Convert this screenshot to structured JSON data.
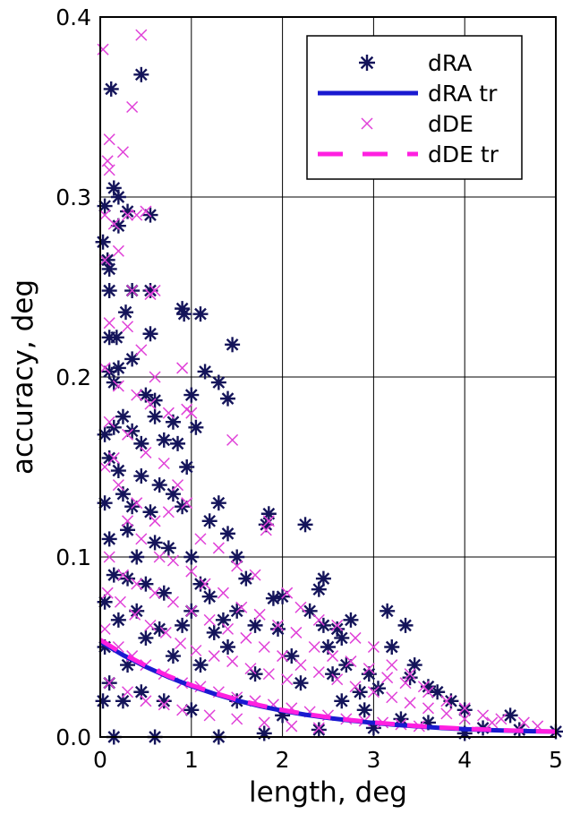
{
  "chart_data": {
    "type": "scatter",
    "title": "",
    "xlabel": "length, deg",
    "ylabel": "accuracy, deg",
    "xlim": [
      0,
      5
    ],
    "ylim": [
      0,
      0.4
    ],
    "x_ticks": [
      "0",
      "1",
      "2",
      "3",
      "4",
      "5"
    ],
    "y_ticks": [
      "0.0",
      "0.1",
      "0.2",
      "0.3",
      "0.4"
    ],
    "grid": true,
    "legend_position": "top-right",
    "series": [
      {
        "name": "dRA",
        "marker": "asterisk",
        "color": "#14145a",
        "points": [
          [
            0.03,
            0.275
          ],
          [
            0.05,
            0.295
          ],
          [
            0.08,
            0.265
          ],
          [
            0.1,
            0.26
          ],
          [
            0.1,
            0.248
          ],
          [
            0.12,
            0.36
          ],
          [
            0.15,
            0.305
          ],
          [
            0.2,
            0.3
          ],
          [
            0.2,
            0.284
          ],
          [
            0.3,
            0.292
          ],
          [
            0.45,
            0.368
          ],
          [
            0.55,
            0.29
          ],
          [
            0.1,
            0.222
          ],
          [
            0.18,
            0.222
          ],
          [
            0.28,
            0.236
          ],
          [
            0.35,
            0.248
          ],
          [
            0.55,
            0.248
          ],
          [
            0.55,
            0.224
          ],
          [
            0.1,
            0.203
          ],
          [
            0.15,
            0.197
          ],
          [
            0.2,
            0.205
          ],
          [
            0.35,
            0.21
          ],
          [
            0.5,
            0.19
          ],
          [
            0.6,
            0.187
          ],
          [
            0.6,
            0.178
          ],
          [
            0.9,
            0.238
          ],
          [
            0.92,
            0.235
          ],
          [
            1.1,
            0.235
          ],
          [
            1.15,
            0.203
          ],
          [
            1.3,
            0.197
          ],
          [
            1.4,
            0.188
          ],
          [
            1.45,
            0.218
          ],
          [
            1.0,
            0.19
          ],
          [
            0.8,
            0.175
          ],
          [
            1.05,
            0.172
          ],
          [
            0.05,
            0.168
          ],
          [
            0.15,
            0.172
          ],
          [
            0.25,
            0.178
          ],
          [
            0.35,
            0.17
          ],
          [
            0.45,
            0.163
          ],
          [
            0.7,
            0.165
          ],
          [
            0.85,
            0.163
          ],
          [
            0.1,
            0.155
          ],
          [
            0.2,
            0.148
          ],
          [
            0.45,
            0.145
          ],
          [
            0.65,
            0.14
          ],
          [
            0.95,
            0.15
          ],
          [
            0.05,
            0.13
          ],
          [
            0.25,
            0.135
          ],
          [
            0.35,
            0.128
          ],
          [
            0.55,
            0.125
          ],
          [
            0.8,
            0.135
          ],
          [
            0.9,
            0.128
          ],
          [
            1.2,
            0.12
          ],
          [
            1.3,
            0.13
          ],
          [
            1.4,
            0.113
          ],
          [
            1.85,
            0.124
          ],
          [
            1.82,
            0.118
          ],
          [
            2.25,
            0.118
          ],
          [
            0.1,
            0.11
          ],
          [
            0.3,
            0.115
          ],
          [
            0.4,
            0.1
          ],
          [
            0.6,
            0.108
          ],
          [
            0.75,
            0.105
          ],
          [
            1.0,
            0.1
          ],
          [
            1.1,
            0.085
          ],
          [
            1.5,
            0.1
          ],
          [
            1.6,
            0.088
          ],
          [
            1.9,
            0.077
          ],
          [
            2.0,
            0.078
          ],
          [
            2.45,
            0.088
          ],
          [
            2.4,
            0.082
          ],
          [
            1.2,
            0.078
          ],
          [
            1.35,
            0.065
          ],
          [
            1.5,
            0.07
          ],
          [
            1.7,
            0.062
          ],
          [
            1.95,
            0.06
          ],
          [
            2.3,
            0.07
          ],
          [
            2.45,
            0.062
          ],
          [
            2.6,
            0.06
          ],
          [
            2.75,
            0.065
          ],
          [
            1.0,
            0.07
          ],
          [
            0.7,
            0.08
          ],
          [
            0.5,
            0.085
          ],
          [
            0.3,
            0.088
          ],
          [
            0.15,
            0.09
          ],
          [
            3.15,
            0.07
          ],
          [
            3.35,
            0.062
          ],
          [
            3.2,
            0.05
          ],
          [
            2.1,
            0.045
          ],
          [
            2.5,
            0.05
          ],
          [
            2.65,
            0.055
          ],
          [
            2.7,
            0.04
          ],
          [
            2.55,
            0.035
          ],
          [
            2.95,
            0.035
          ],
          [
            3.45,
            0.04
          ],
          [
            3.4,
            0.033
          ],
          [
            3.6,
            0.028
          ],
          [
            3.7,
            0.025
          ],
          [
            3.85,
            0.02
          ],
          [
            4.0,
            0.015
          ],
          [
            4.5,
            0.012
          ],
          [
            3.05,
            0.027
          ],
          [
            2.85,
            0.025
          ],
          [
            2.65,
            0.02
          ],
          [
            0.15,
            0.0
          ],
          [
            0.6,
            0.0
          ],
          [
            1.3,
            0.0
          ],
          [
            1.8,
            0.002
          ],
          [
            2.4,
            0.004
          ],
          [
            3.0,
            0.005
          ],
          [
            4.0,
            0.002
          ],
          [
            5.0,
            0.003
          ],
          [
            0.05,
            0.05
          ],
          [
            0.3,
            0.04
          ],
          [
            0.5,
            0.055
          ],
          [
            0.8,
            0.045
          ],
          [
            1.1,
            0.04
          ],
          [
            1.4,
            0.05
          ],
          [
            1.7,
            0.035
          ],
          [
            2.2,
            0.03
          ],
          [
            2.9,
            0.015
          ],
          [
            3.3,
            0.01
          ],
          [
            3.6,
            0.008
          ],
          [
            4.2,
            0.005
          ],
          [
            4.6,
            0.004
          ],
          [
            0.05,
            0.075
          ],
          [
            0.2,
            0.065
          ],
          [
            0.4,
            0.07
          ],
          [
            0.65,
            0.06
          ],
          [
            0.9,
            0.062
          ],
          [
            1.25,
            0.058
          ],
          [
            0.03,
            0.02
          ],
          [
            0.1,
            0.03
          ],
          [
            0.25,
            0.02
          ],
          [
            0.45,
            0.025
          ],
          [
            0.7,
            0.02
          ],
          [
            1.0,
            0.015
          ],
          [
            1.5,
            0.02
          ],
          [
            2.0,
            0.012
          ]
        ]
      },
      {
        "name": "dRA tr",
        "line": "solid",
        "color": "#1a1ad0",
        "x": [
          0,
          0.25,
          0.5,
          0.75,
          1.0,
          1.25,
          1.5,
          1.75,
          2.0,
          2.25,
          2.5,
          2.75,
          3.0,
          3.25,
          3.5,
          3.75,
          4.0,
          4.25,
          4.5,
          4.75,
          5.0
        ],
        "values": [
          0.053,
          0.0455,
          0.039,
          0.0333,
          0.0283,
          0.024,
          0.0203,
          0.0172,
          0.0146,
          0.0124,
          0.0106,
          0.0091,
          0.0078,
          0.0067,
          0.0058,
          0.005,
          0.0044,
          0.0039,
          0.0035,
          0.0032,
          0.003
        ]
      },
      {
        "name": "dDE",
        "marker": "cross",
        "color": "#e040d8",
        "points": [
          [
            0.03,
            0.382
          ],
          [
            0.08,
            0.32
          ],
          [
            0.1,
            0.315
          ],
          [
            0.1,
            0.332
          ],
          [
            0.25,
            0.325
          ],
          [
            0.35,
            0.35
          ],
          [
            0.45,
            0.39
          ],
          [
            0.05,
            0.29
          ],
          [
            0.15,
            0.285
          ],
          [
            0.3,
            0.29
          ],
          [
            0.4,
            0.29
          ],
          [
            0.5,
            0.292
          ],
          [
            0.05,
            0.265
          ],
          [
            0.2,
            0.27
          ],
          [
            0.35,
            0.248
          ],
          [
            0.55,
            0.246
          ],
          [
            0.6,
            0.248
          ],
          [
            0.1,
            0.23
          ],
          [
            0.3,
            0.228
          ],
          [
            0.45,
            0.215
          ],
          [
            0.6,
            0.2
          ],
          [
            0.9,
            0.205
          ],
          [
            0.05,
            0.205
          ],
          [
            0.2,
            0.195
          ],
          [
            0.4,
            0.19
          ],
          [
            0.55,
            0.185
          ],
          [
            0.75,
            0.18
          ],
          [
            0.95,
            0.182
          ],
          [
            1.0,
            0.18
          ],
          [
            1.45,
            0.165
          ],
          [
            0.1,
            0.175
          ],
          [
            0.3,
            0.168
          ],
          [
            0.5,
            0.158
          ],
          [
            0.7,
            0.152
          ],
          [
            0.85,
            0.14
          ],
          [
            0.2,
            0.14
          ],
          [
            0.4,
            0.13
          ],
          [
            0.6,
            0.12
          ],
          [
            0.75,
            0.125
          ],
          [
            0.95,
            0.13
          ],
          [
            1.1,
            0.11
          ],
          [
            1.3,
            0.105
          ],
          [
            1.5,
            0.095
          ],
          [
            1.7,
            0.09
          ],
          [
            1.82,
            0.115
          ],
          [
            1.85,
            0.12
          ],
          [
            2.05,
            0.08
          ],
          [
            2.2,
            0.072
          ],
          [
            2.4,
            0.065
          ],
          [
            2.6,
            0.062
          ],
          [
            2.8,
            0.055
          ],
          [
            3.0,
            0.05
          ],
          [
            3.2,
            0.04
          ],
          [
            3.4,
            0.035
          ],
          [
            3.6,
            0.025
          ],
          [
            3.8,
            0.02
          ],
          [
            4.0,
            0.016
          ],
          [
            4.2,
            0.012
          ],
          [
            4.4,
            0.01
          ],
          [
            4.65,
            0.008
          ],
          [
            0.1,
            0.1
          ],
          [
            0.25,
            0.09
          ],
          [
            0.4,
            0.085
          ],
          [
            0.6,
            0.08
          ],
          [
            0.8,
            0.075
          ],
          [
            1.0,
            0.07
          ],
          [
            1.2,
            0.065
          ],
          [
            1.4,
            0.06
          ],
          [
            1.6,
            0.055
          ],
          [
            1.8,
            0.05
          ],
          [
            2.0,
            0.045
          ],
          [
            2.2,
            0.04
          ],
          [
            2.4,
            0.036
          ],
          [
            2.6,
            0.032
          ],
          [
            2.8,
            0.028
          ],
          [
            3.0,
            0.025
          ],
          [
            3.2,
            0.022
          ],
          [
            3.4,
            0.019
          ],
          [
            3.6,
            0.016
          ],
          [
            3.8,
            0.013
          ],
          [
            4.0,
            0.01
          ],
          [
            4.3,
            0.008
          ],
          [
            4.8,
            0.006
          ],
          [
            0.05,
            0.06
          ],
          [
            0.2,
            0.05
          ],
          [
            0.35,
            0.045
          ],
          [
            0.5,
            0.04
          ],
          [
            0.7,
            0.035
          ],
          [
            0.9,
            0.03
          ],
          [
            1.1,
            0.028
          ],
          [
            1.3,
            0.025
          ],
          [
            1.5,
            0.022
          ],
          [
            1.7,
            0.02
          ],
          [
            1.9,
            0.018
          ],
          [
            2.1,
            0.016
          ],
          [
            2.3,
            0.014
          ],
          [
            2.5,
            0.012
          ],
          [
            2.7,
            0.01
          ],
          [
            2.9,
            0.009
          ],
          [
            3.1,
            0.008
          ],
          [
            3.3,
            0.007
          ],
          [
            3.5,
            0.006
          ],
          [
            0.1,
            0.03
          ],
          [
            0.3,
            0.025
          ],
          [
            0.5,
            0.02
          ],
          [
            0.7,
            0.018
          ],
          [
            0.9,
            0.015
          ],
          [
            1.2,
            0.012
          ],
          [
            1.5,
            0.01
          ],
          [
            1.8,
            0.008
          ],
          [
            2.1,
            0.006
          ],
          [
            2.4,
            0.005
          ],
          [
            0.05,
            0.15
          ],
          [
            0.15,
            0.155
          ],
          [
            0.3,
            0.12
          ],
          [
            0.45,
            0.11
          ],
          [
            0.65,
            0.1
          ],
          [
            0.8,
            0.098
          ],
          [
            1.0,
            0.092
          ],
          [
            1.15,
            0.085
          ],
          [
            1.35,
            0.08
          ],
          [
            1.55,
            0.072
          ],
          [
            1.75,
            0.068
          ],
          [
            1.95,
            0.062
          ],
          [
            2.15,
            0.058
          ],
          [
            2.35,
            0.05
          ],
          [
            2.55,
            0.045
          ],
          [
            2.75,
            0.042
          ],
          [
            2.95,
            0.038
          ],
          [
            3.15,
            0.033
          ],
          [
            3.35,
            0.03
          ],
          [
            3.55,
            0.028
          ],
          [
            0.08,
            0.08
          ],
          [
            0.22,
            0.075
          ],
          [
            0.38,
            0.068
          ],
          [
            0.55,
            0.062
          ],
          [
            0.72,
            0.058
          ],
          [
            0.88,
            0.052
          ],
          [
            1.05,
            0.048
          ],
          [
            1.25,
            0.045
          ],
          [
            1.45,
            0.042
          ],
          [
            1.65,
            0.038
          ],
          [
            1.85,
            0.035
          ],
          [
            2.05,
            0.032
          ]
        ]
      },
      {
        "name": "dDE tr",
        "line": "dashed",
        "color": "#ff20e0",
        "x": [
          0,
          0.25,
          0.5,
          0.75,
          1.0,
          1.25,
          1.5,
          1.75,
          2.0,
          2.25,
          2.5,
          2.75,
          3.0,
          3.25,
          3.5,
          3.75,
          4.0,
          4.25,
          4.5,
          4.75,
          5.0
        ],
        "values": [
          0.054,
          0.0462,
          0.0396,
          0.0338,
          0.0288,
          0.0245,
          0.0208,
          0.0176,
          0.015,
          0.0128,
          0.011,
          0.0094,
          0.0081,
          0.007,
          0.006,
          0.0052,
          0.0046,
          0.0041,
          0.0036,
          0.0033,
          0.003
        ]
      }
    ]
  }
}
